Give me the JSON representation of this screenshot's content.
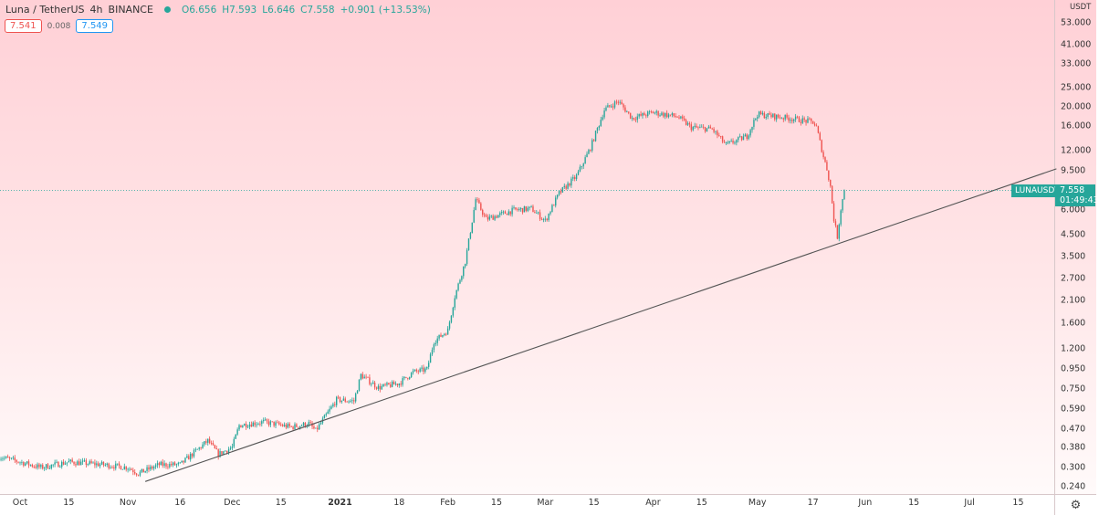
{
  "header": {
    "symbol": "Luna / TetherUS",
    "interval": "4h",
    "exchange": "BINANCE",
    "open": "O6.656",
    "high": "H7.593",
    "low": "L6.646",
    "close": "C7.558",
    "change": "+0.901 (+13.53%)",
    "sell_price": "7.541",
    "spread": "0.008",
    "buy_price": "7.549"
  },
  "price_axis": {
    "unit": "USDT",
    "last_symbol": "LUNAUSDT",
    "last_price": "7.558",
    "countdown": "01:49:43",
    "settings_icon": "gear-icon"
  },
  "colors": {
    "up": "#26a69a",
    "down": "#ef5350",
    "trendline": "#555555",
    "background_top": "#ffd0d6",
    "background_bottom": "#fffafa"
  },
  "chart_data": {
    "type": "candlestick",
    "scale": "log",
    "ylim": [
      0.22,
      60
    ],
    "xlim": [
      "2020-09-25",
      "2021-07-26"
    ],
    "y_ticks": [
      "53.000",
      "41.000",
      "33.000",
      "25.000",
      "20.000",
      "16.000",
      "12.000",
      "9.500",
      "6.000",
      "4.500",
      "3.500",
      "2.700",
      "2.100",
      "1.600",
      "1.200",
      "0.950",
      "0.750",
      "0.590",
      "0.470",
      "0.380",
      "0.300",
      "0.240"
    ],
    "x_ticks": [
      {
        "label": "Oct",
        "date": "2020-10-01"
      },
      {
        "label": "15",
        "date": "2020-10-15"
      },
      {
        "label": "Nov",
        "date": "2020-11-01"
      },
      {
        "label": "16",
        "date": "2020-11-16"
      },
      {
        "label": "Dec",
        "date": "2020-12-01"
      },
      {
        "label": "15",
        "date": "2020-12-15"
      },
      {
        "label": "2021",
        "date": "2021-01-01",
        "bold": true
      },
      {
        "label": "18",
        "date": "2021-01-18"
      },
      {
        "label": "Feb",
        "date": "2021-02-01"
      },
      {
        "label": "15",
        "date": "2021-02-15"
      },
      {
        "label": "Mar",
        "date": "2021-03-01"
      },
      {
        "label": "15",
        "date": "2021-03-15"
      },
      {
        "label": "Apr",
        "date": "2021-04-01"
      },
      {
        "label": "15",
        "date": "2021-04-15"
      },
      {
        "label": "May",
        "date": "2021-05-01"
      },
      {
        "label": "17",
        "date": "2021-05-17"
      },
      {
        "label": "Jun",
        "date": "2021-06-01"
      },
      {
        "label": "15",
        "date": "2021-06-15"
      },
      {
        "label": "Jul",
        "date": "2021-07-01"
      },
      {
        "label": "15",
        "date": "2021-07-15"
      }
    ],
    "close_path": [
      [
        "2020-09-25",
        0.34
      ],
      [
        "2020-10-01",
        0.32
      ],
      [
        "2020-10-07",
        0.3
      ],
      [
        "2020-10-15",
        0.32
      ],
      [
        "2020-10-25",
        0.31
      ],
      [
        "2020-11-01",
        0.3
      ],
      [
        "2020-11-04",
        0.28
      ],
      [
        "2020-11-10",
        0.31
      ],
      [
        "2020-11-16",
        0.31
      ],
      [
        "2020-11-24",
        0.41
      ],
      [
        "2020-11-27",
        0.35
      ],
      [
        "2020-12-01",
        0.38
      ],
      [
        "2020-12-03",
        0.49
      ],
      [
        "2020-12-10",
        0.51
      ],
      [
        "2020-12-18",
        0.48
      ],
      [
        "2020-12-23",
        0.5
      ],
      [
        "2020-12-25",
        0.46
      ],
      [
        "2020-12-31",
        0.66
      ],
      [
        "2021-01-05",
        0.65
      ],
      [
        "2021-01-07",
        0.88
      ],
      [
        "2021-01-12",
        0.76
      ],
      [
        "2021-01-18",
        0.8
      ],
      [
        "2021-01-22",
        0.91
      ],
      [
        "2021-01-26",
        0.94
      ],
      [
        "2021-01-28",
        1.3
      ],
      [
        "2021-02-01",
        1.48
      ],
      [
        "2021-02-03",
        2.2
      ],
      [
        "2021-02-06",
        3.3
      ],
      [
        "2021-02-08",
        5.3
      ],
      [
        "2021-02-09",
        6.8
      ],
      [
        "2021-02-12",
        5.4
      ],
      [
        "2021-02-20",
        6.0
      ],
      [
        "2021-02-25",
        6.1
      ],
      [
        "2021-03-01",
        5.3
      ],
      [
        "2021-03-05",
        7.3
      ],
      [
        "2021-03-10",
        8.9
      ],
      [
        "2021-03-14",
        12.4
      ],
      [
        "2021-03-18",
        19.3
      ],
      [
        "2021-03-22",
        21.3
      ],
      [
        "2021-03-26",
        17.5
      ],
      [
        "2021-04-01",
        18.7
      ],
      [
        "2021-04-08",
        17.8
      ],
      [
        "2021-04-12",
        15.7
      ],
      [
        "2021-04-18",
        15.4
      ],
      [
        "2021-04-22",
        12.8
      ],
      [
        "2021-04-28",
        14.2
      ],
      [
        "2021-05-01",
        18.3
      ],
      [
        "2021-05-10",
        17.5
      ],
      [
        "2021-05-17",
        16.7
      ],
      [
        "2021-05-18",
        15.7
      ],
      [
        "2021-05-20",
        11.2
      ],
      [
        "2021-05-21",
        9.7
      ],
      [
        "2021-05-22",
        7.9
      ],
      [
        "2021-05-23",
        5.4
      ],
      [
        "2021-05-24",
        4.4
      ],
      [
        "2021-05-25",
        6.1
      ],
      [
        "2021-05-26",
        7.558
      ]
    ],
    "trendline": [
      [
        "2020-11-06",
        0.255
      ],
      [
        "2021-07-26",
        9.7
      ]
    ],
    "last_price": 7.558
  }
}
